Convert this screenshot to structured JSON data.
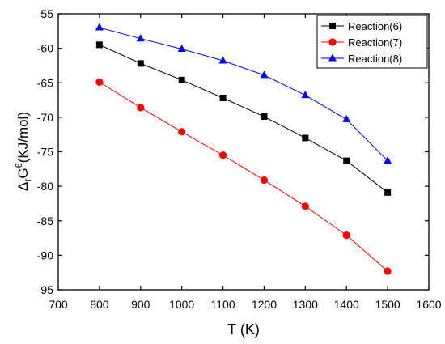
{
  "chart_data": {
    "type": "line",
    "xlabel": "T (K)",
    "ylabel": {
      "prefix": "Δ",
      "sub": "r",
      "main": "G",
      "sup": "θ",
      "rest": "(KJ/mol)"
    },
    "xlim": [
      700,
      1600
    ],
    "ylim": [
      -95,
      -55
    ],
    "xticks": [
      700,
      800,
      900,
      1000,
      1100,
      1200,
      1300,
      1400,
      1500,
      1600
    ],
    "yticks": [
      -55,
      -60,
      -65,
      -70,
      -75,
      -80,
      -85,
      -90,
      -95
    ],
    "legend_position": "top-right",
    "x": [
      800,
      900,
      1000,
      1100,
      1200,
      1300,
      1400,
      1500
    ],
    "series": [
      {
        "name": "Reaction(6)",
        "color": "#000000",
        "marker": "square",
        "values": [
          -59.5,
          -62.2,
          -64.6,
          -67.2,
          -69.9,
          -73.0,
          -76.3,
          -80.9
        ]
      },
      {
        "name": "Reaction(7)",
        "color": "#ff0000",
        "marker": "circle",
        "values": [
          -64.9,
          -68.6,
          -72.1,
          -75.5,
          -79.1,
          -82.9,
          -87.1,
          -92.3
        ]
      },
      {
        "name": "Reaction(8)",
        "color": "#0000ff",
        "marker": "triangle",
        "values": [
          -57.0,
          -58.6,
          -60.1,
          -61.8,
          -63.9,
          -66.8,
          -70.3,
          -76.3
        ]
      }
    ]
  }
}
